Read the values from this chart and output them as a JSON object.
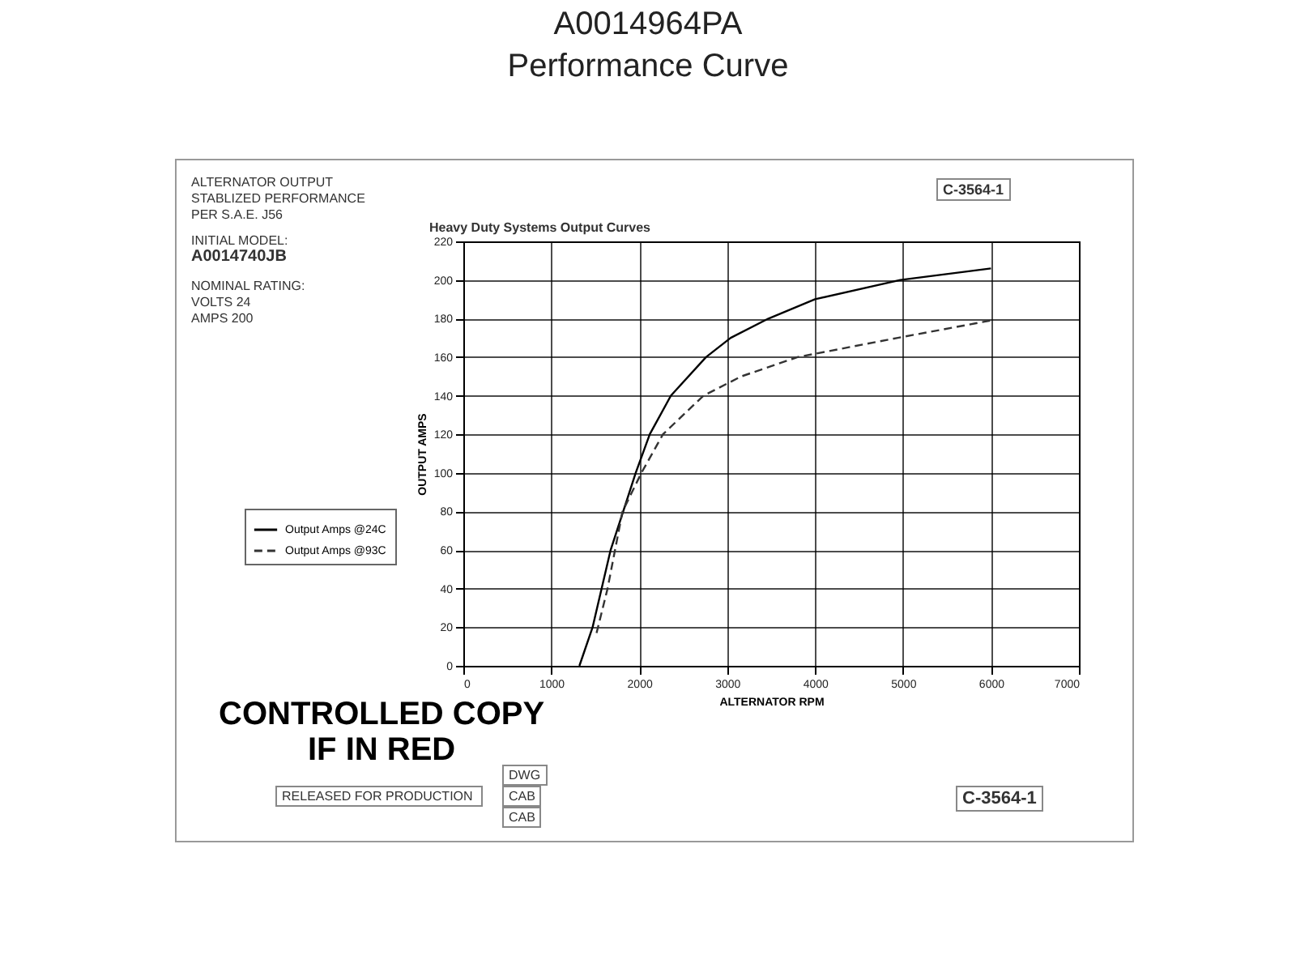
{
  "chart_data": {
    "type": "line",
    "title": "A0014964PA",
    "subtitle": "Performance Curve",
    "xlabel": "ALTERNATOR RPM",
    "ylabel": "OUTPUT AMPS",
    "xlim": [
      0,
      7000
    ],
    "xticks": [
      0,
      1000,
      2000,
      3000,
      4000,
      5000,
      6000,
      7000
    ],
    "ylim": [
      0,
      220
    ],
    "yticks": [
      0,
      20,
      40,
      60,
      80,
      100,
      120,
      140,
      160,
      180,
      200,
      220
    ],
    "grid": true,
    "legend": "left",
    "marker": "none",
    "series": [
      {
        "name": "Output Amps @24C",
        "color": "#000000",
        "line_style": "solid",
        "x": [
          1320,
          1470,
          1675,
          1960,
          2120,
          2360,
          2760,
          3040,
          3470,
          4000,
          4970,
          6000
        ],
        "values": [
          0,
          20,
          60,
          100,
          120,
          140,
          160,
          170,
          180,
          190,
          200,
          206
        ]
      },
      {
        "name": "Output Amps @93C",
        "color": "#333333",
        "line_style": "dashed",
        "x": [
          1515,
          1640,
          1810,
          2025,
          2270,
          2730,
          3160,
          3800,
          4940,
          6000
        ],
        "values": [
          17,
          40,
          80,
          100,
          120,
          140,
          150,
          160,
          170,
          179
        ]
      }
    ],
    "annotations": [
      "Heavy Duty Systems Output Curves",
      "ALTERNATOR OUTPUT\nSTABLIZED PERFORMANCE\nPER S.A.E. J56",
      "INITIAL MODEL:",
      "A0014740JB",
      "NOMINAL RATING:\nVOLTS 24\nAMPS 200",
      "CONTROLLED COPY\nIF IN RED",
      "RELEASED FOR PRODUCTION",
      "DWG",
      "CAB",
      "CAB",
      "C-3564-1",
      "C-3564-1"
    ]
  }
}
